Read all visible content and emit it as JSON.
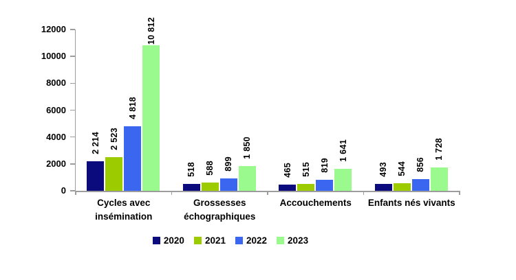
{
  "chart_data": {
    "type": "bar",
    "title": "",
    "categories": [
      "Cycles avec insémination",
      "Grossesses échographiques",
      "Accouchements",
      "Enfants nés vivants"
    ],
    "category_lines": [
      [
        "Cycles avec",
        "insémination"
      ],
      [
        "Grossesses",
        "échographiques"
      ],
      [
        "Accouchements"
      ],
      [
        "Enfants nés vivants"
      ]
    ],
    "series": [
      {
        "name": "2020",
        "color": "#0b0b7d",
        "values": [
          2214,
          518,
          465,
          493
        ],
        "value_labels": [
          "2 214",
          "518",
          "465",
          "493"
        ]
      },
      {
        "name": "2021",
        "color": "#9ccb00",
        "values": [
          2523,
          588,
          515,
          544
        ],
        "value_labels": [
          "2 523",
          "588",
          "515",
          "544"
        ]
      },
      {
        "name": "2022",
        "color": "#3a66f0",
        "values": [
          4818,
          899,
          819,
          856
        ],
        "value_labels": [
          "4 818",
          "899",
          "819",
          "856"
        ]
      },
      {
        "name": "2023",
        "color": "#9bfa8e",
        "values": [
          10812,
          1850,
          1641,
          1728
        ],
        "value_labels": [
          "10 812",
          "1 850",
          "1 641",
          "1 728"
        ]
      }
    ],
    "ylim": [
      0,
      12000
    ],
    "ytick_values": [
      0,
      2000,
      4000,
      6000,
      8000,
      10000,
      12000
    ],
    "ytick_labels": [
      "0",
      "2000",
      "4000",
      "6000",
      "8000",
      "10000",
      "12000"
    ],
    "grid": false,
    "legend_position": "bottom",
    "legend": [
      "2020",
      "2021",
      "2022",
      "2023"
    ],
    "axis_color": "#9c9c9c",
    "text_color": "#000000"
  }
}
